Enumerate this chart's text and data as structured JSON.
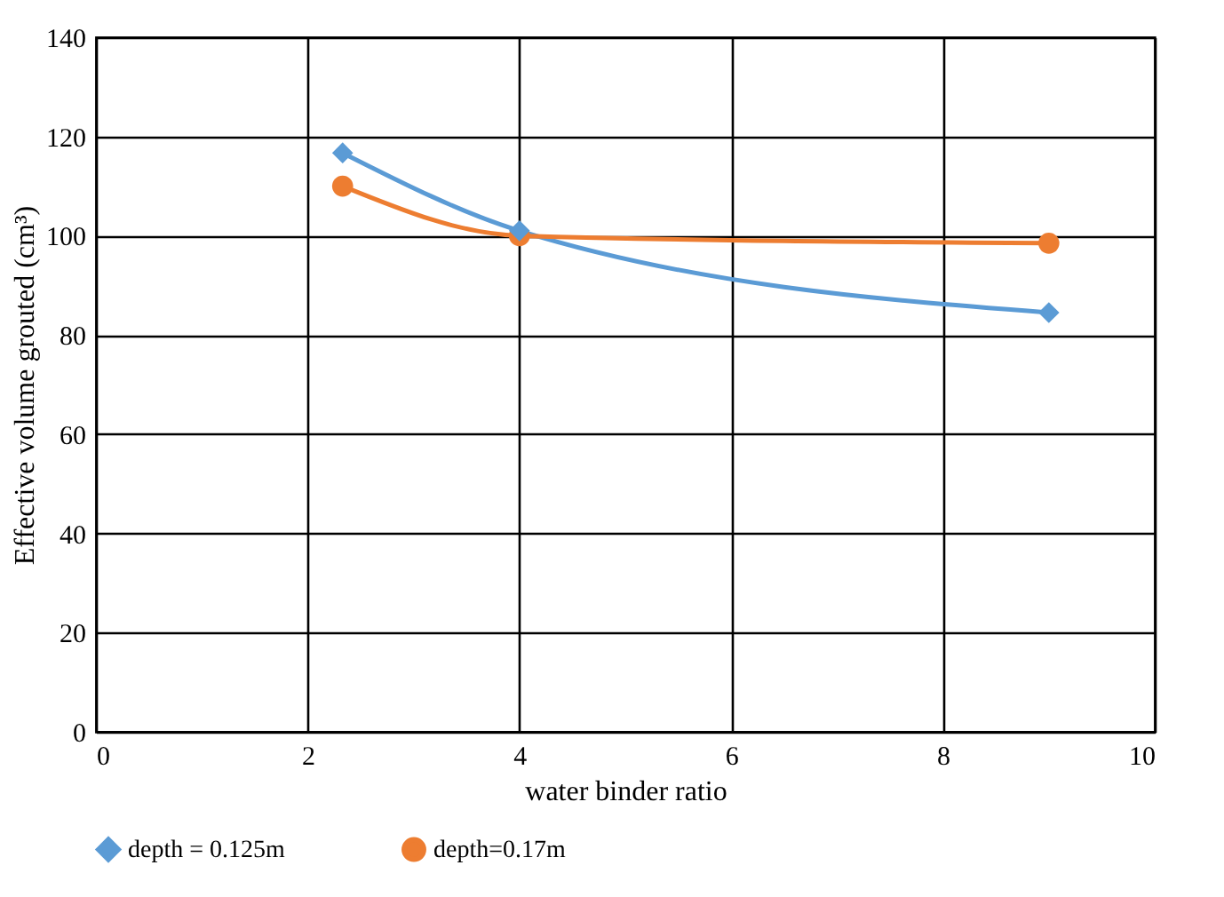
{
  "chart_data": {
    "type": "line",
    "xlabel": "water binder ratio",
    "ylabel": "Effective volume  grouted (cm³)",
    "xlim": [
      0,
      10
    ],
    "xticks": [
      0,
      2,
      4,
      6,
      8,
      10
    ],
    "ylim": [
      0,
      140
    ],
    "yticks": [
      0,
      20,
      40,
      60,
      80,
      100,
      120,
      140
    ],
    "grid": true,
    "legend": "bottom",
    "series": [
      {
        "name": "depth = 0.125m",
        "color": "#5b9bd5",
        "marker": "diamond",
        "x": [
          2.33,
          4,
          9
        ],
        "values": [
          116.7,
          101,
          84.5
        ]
      },
      {
        "name": "depth=0.17m",
        "color": "#ed7d31",
        "marker": "circle",
        "x": [
          2.33,
          4,
          9
        ],
        "values": [
          110,
          100,
          98.5
        ]
      }
    ]
  }
}
